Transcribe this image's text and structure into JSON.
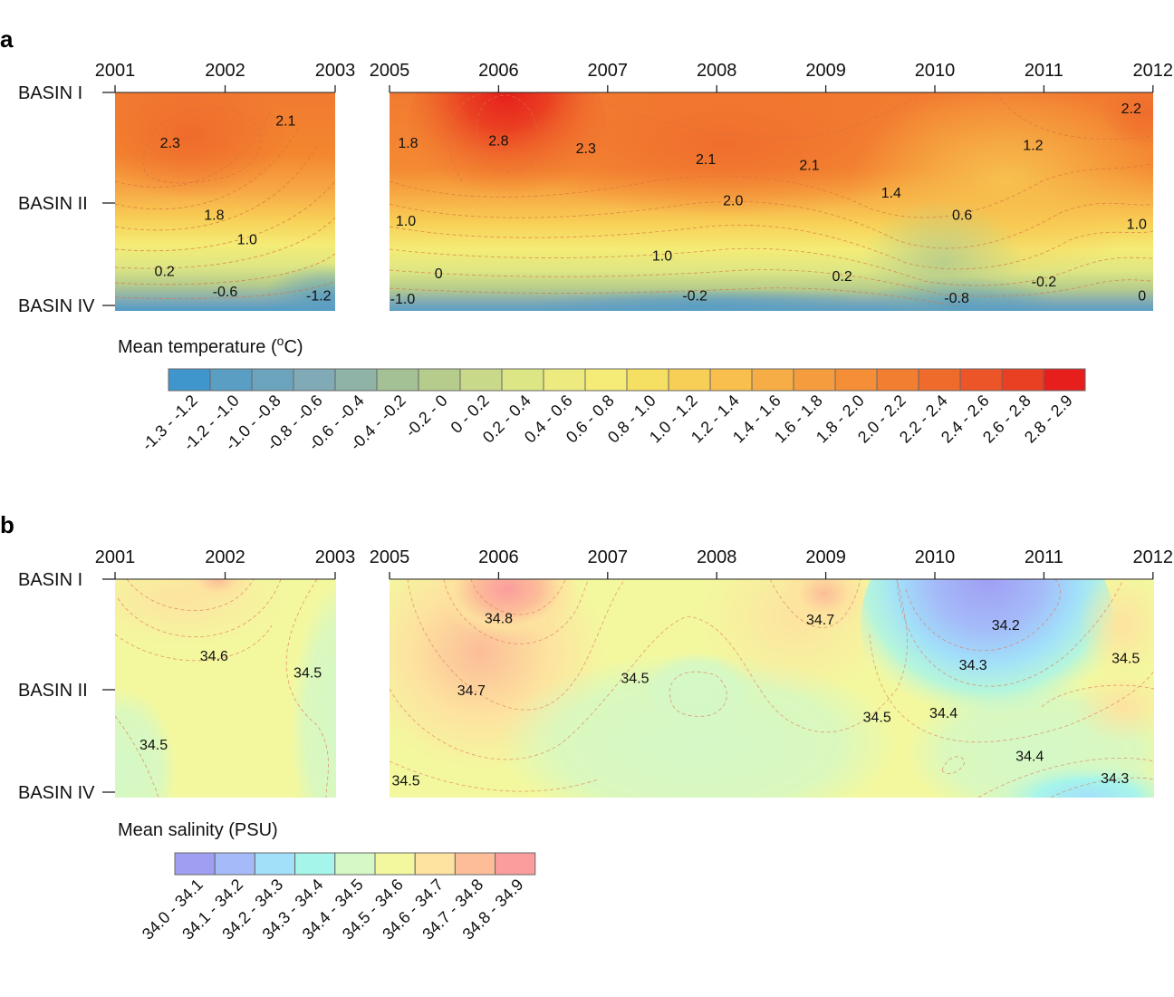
{
  "panels": {
    "a": "a",
    "b": "b"
  },
  "chart_data": [
    {
      "type": "heatmap",
      "panel": "a",
      "x_ticks": [
        "2001",
        "2002",
        "2003",
        "2005",
        "2006",
        "2007",
        "2008",
        "2009",
        "2010",
        "2011",
        "2012"
      ],
      "y_ticks": [
        "BASIN I",
        "BASIN II",
        "BASIN IV"
      ],
      "legend_title": "Mean temperature (",
      "legend_title_sup": "o",
      "legend_title_end": "C)",
      "legend": {
        "labels": [
          "-1.3 - -1.2",
          "-1.2 - -1.0",
          "-1.0 - -0.8",
          "-0.8 - -0.6",
          "-0.6 - -0.4",
          "-0.4 - -0.2",
          "-0.2 - 0",
          "0 - 0.2",
          "0.2 - 0.4",
          "0.4 - 0.6",
          "0.6 - 0.8",
          "0.8 - 1.0",
          "1.0 - 1.2",
          "1.2 - 1.4",
          "1.4 - 1.6",
          "1.6 - 1.8",
          "1.8 - 2.0",
          "2.0 - 2.2",
          "2.2 - 2.4",
          "2.4 - 2.6",
          "2.6 - 2.8",
          "2.8 - 2.9"
        ],
        "colors": [
          "#3f96cc",
          "#5a9ec3",
          "#6da4bd",
          "#80aab5",
          "#8fb3a6",
          "#a3c194",
          "#b6cc8c",
          "#c9d98a",
          "#dde684",
          "#edeb7f",
          "#f4ec76",
          "#f6e063",
          "#f8cf56",
          "#f8bf4f",
          "#f6ad45",
          "#f59d3e",
          "#f48e37",
          "#f17e31",
          "#ef6b2c",
          "#ec5527",
          "#e93f22",
          "#e61f1c"
        ]
      },
      "contour_labels": [
        {
          "value": "2.3",
          "year": 2001.5,
          "depth": 0.45
        },
        {
          "value": "2.1",
          "year": 2002.55,
          "depth": 0.25
        },
        {
          "value": "1.8",
          "year": 2001.9,
          "depth": 1.11
        },
        {
          "value": "1.0",
          "year": 2002.2,
          "depth": 1.35
        },
        {
          "value": "0.2",
          "year": 2001.45,
          "depth": 1.66
        },
        {
          "value": "-0.6",
          "year": 2002.0,
          "depth": 1.86
        },
        {
          "value": "-1.2",
          "year": 2002.85,
          "depth": 1.9
        },
        {
          "value": "1.8",
          "year": 2005.17,
          "depth": 0.45
        },
        {
          "value": "2.8",
          "year": 2006.0,
          "depth": 0.43
        },
        {
          "value": "2.3",
          "year": 2006.8,
          "depth": 0.5
        },
        {
          "value": "2.1",
          "year": 2007.9,
          "depth": 0.6
        },
        {
          "value": "2.1",
          "year": 2008.85,
          "depth": 0.65
        },
        {
          "value": "2.0",
          "year": 2008.15,
          "depth": 0.97
        },
        {
          "value": "1.4",
          "year": 2009.6,
          "depth": 0.9
        },
        {
          "value": "1.2",
          "year": 2010.9,
          "depth": 0.47
        },
        {
          "value": "2.2",
          "year": 2011.8,
          "depth": 0.14
        },
        {
          "value": "1.0",
          "year": 2005.15,
          "depth": 1.17
        },
        {
          "value": "0.6",
          "year": 2010.25,
          "depth": 1.11
        },
        {
          "value": "1.0",
          "year": 2011.85,
          "depth": 1.2
        },
        {
          "value": "0",
          "year": 2005.45,
          "depth": 1.68
        },
        {
          "value": "1.0",
          "year": 2007.5,
          "depth": 1.51
        },
        {
          "value": "-1.0",
          "year": 2005.12,
          "depth": 1.93
        },
        {
          "value": "-0.2",
          "year": 2007.8,
          "depth": 1.9
        },
        {
          "value": "0.2",
          "year": 2009.15,
          "depth": 1.71
        },
        {
          "value": "-0.8",
          "year": 2010.2,
          "depth": 1.92
        },
        {
          "value": "-0.2",
          "year": 2011.0,
          "depth": 1.76
        },
        {
          "value": "0",
          "year": 2011.9,
          "depth": 1.9
        }
      ]
    },
    {
      "type": "heatmap",
      "panel": "b",
      "x_ticks": [
        "2001",
        "2002",
        "2003",
        "2005",
        "2006",
        "2007",
        "2008",
        "2009",
        "2010",
        "2011",
        "2012"
      ],
      "y_ticks": [
        "BASIN I",
        "BASIN II",
        "BASIN IV"
      ],
      "legend_title": "Mean salinity (PSU)",
      "legend": {
        "labels": [
          "34.0 - 34.1",
          "34.1 - 34.2",
          "34.2 - 34.3",
          "34.3 - 34.4",
          "34.4 - 34.5",
          "34.5 - 34.6",
          "34.6 - 34.7",
          "34.7 - 34.8",
          "34.8 - 34.9"
        ],
        "colors": [
          "#a09ef3",
          "#a4baf9",
          "#a2e0f9",
          "#a6f5ea",
          "#d4f8c6",
          "#f3f89f",
          "#fde39f",
          "#fcbd98",
          "#fb9d9d"
        ]
      },
      "contour_labels": [
        {
          "value": "34.6",
          "year": 2001.9,
          "depth": 0.69
        },
        {
          "value": "34.5",
          "year": 2002.75,
          "depth": 0.84
        },
        {
          "value": "34.5",
          "year": 2001.35,
          "depth": 1.53
        },
        {
          "value": "34.8",
          "year": 2006.0,
          "depth": 0.35
        },
        {
          "value": "34.7",
          "year": 2005.75,
          "depth": 1.0
        },
        {
          "value": "34.5",
          "year": 2007.25,
          "depth": 0.89
        },
        {
          "value": "34.5",
          "year": 2005.15,
          "depth": 1.88
        },
        {
          "value": "34.7",
          "year": 2008.95,
          "depth": 0.36
        },
        {
          "value": "34.2",
          "year": 2010.65,
          "depth": 0.41
        },
        {
          "value": "34.3",
          "year": 2010.35,
          "depth": 0.77
        },
        {
          "value": "34.5",
          "year": 2011.75,
          "depth": 0.71
        },
        {
          "value": "34.5",
          "year": 2009.47,
          "depth": 1.26
        },
        {
          "value": "34.4",
          "year": 2010.08,
          "depth": 1.22
        },
        {
          "value": "34.4",
          "year": 2010.87,
          "depth": 1.64
        },
        {
          "value": "34.3",
          "year": 2011.65,
          "depth": 1.86
        }
      ]
    }
  ]
}
